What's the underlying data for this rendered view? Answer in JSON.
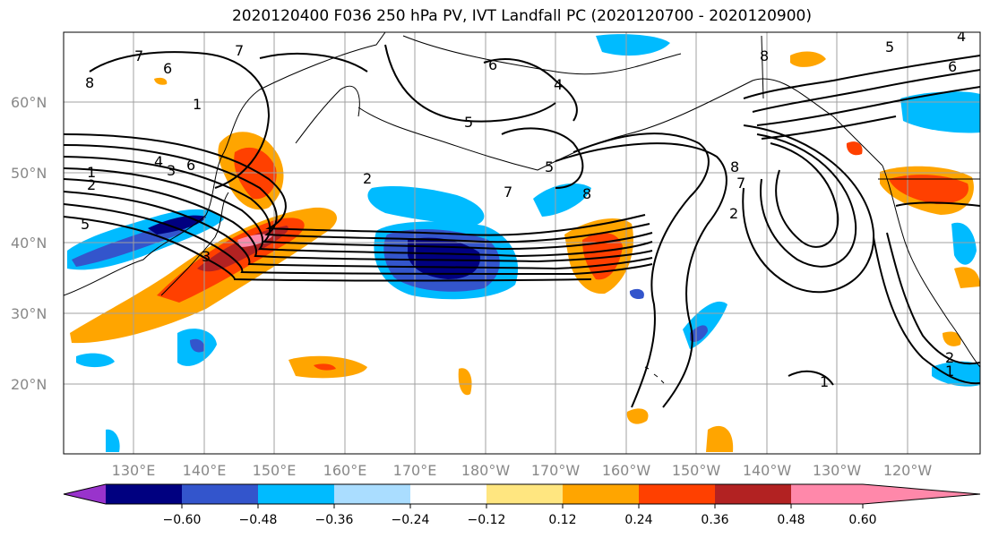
{
  "title": "2020120400 F036 250 hPa PV, IVT Landfall PC (2020120700 - 2020120900)",
  "lat_labels": [
    "60°N",
    "50°N",
    "40°N",
    "30°N",
    "20°N"
  ],
  "lon_labels": [
    "130°E",
    "140°E",
    "150°E",
    "160°E",
    "170°E",
    "180°W",
    "170°W",
    "160°W",
    "150°W",
    "140°W",
    "130°W",
    "120°W"
  ],
  "colorbar": {
    "ticks": [
      "−0.60",
      "−0.48",
      "−0.36",
      "−0.24",
      "−0.12",
      "0.12",
      "0.24",
      "0.36",
      "0.48",
      "0.60"
    ],
    "colors": [
      "#9933cc",
      "#000080",
      "#3355cc",
      "#00bbff",
      "#aaddff",
      "#ffffff",
      "#ffe680",
      "#ffa500",
      "#ff4000",
      "#b22222",
      "#ff88aa"
    ]
  },
  "contour_labels": [
    "8",
    "6",
    "7",
    "1",
    "5",
    "1",
    "2",
    "4",
    "3",
    "5",
    "6",
    "2",
    "4",
    "5",
    "7",
    "8",
    "8",
    "7",
    "2",
    "5",
    "6",
    "4",
    "2",
    "1",
    "1",
    "7",
    "3",
    "6",
    "8"
  ]
}
